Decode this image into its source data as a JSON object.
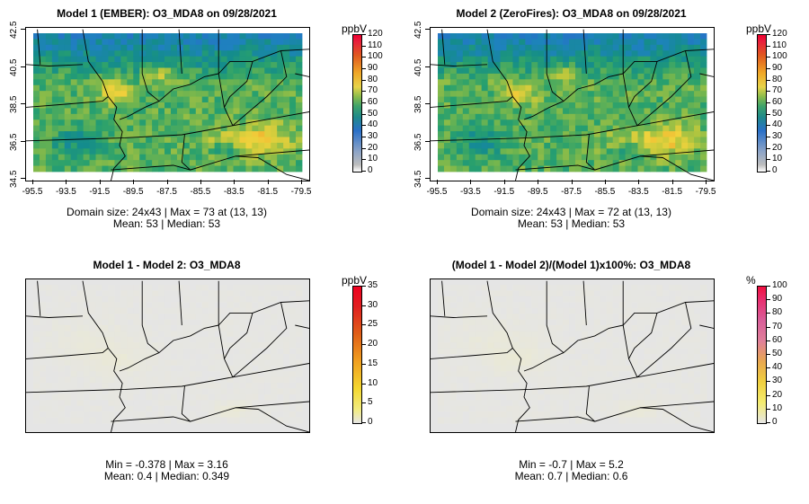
{
  "panels": [
    {
      "title": "Model 1 (EMBER): O3_MDA8 on 09/28/2021",
      "kind": "conc",
      "stats_line1": "Domain size: 24x43 | Max = 73 at (13, 13)",
      "stats_line2": "Mean: 53 |  Median: 53",
      "show_axes": true,
      "unit": "ppbV",
      "colorbar_labels": [
        "120",
        "110",
        "100",
        "90",
        "80",
        "70",
        "60",
        "50",
        "40",
        "30",
        "20",
        "10",
        "0"
      ],
      "colorbar_max": 120
    },
    {
      "title": "Model 2 (ZeroFires): O3_MDA8 on 09/28/2021",
      "kind": "conc",
      "stats_line1": "Domain size: 24x43 | Max = 72 at (13, 13)",
      "stats_line2": "Mean: 53 |  Median: 53",
      "show_axes": true,
      "unit": "ppbV",
      "colorbar_labels": [
        "120",
        "110",
        "100",
        "90",
        "80",
        "70",
        "60",
        "50",
        "40",
        "30",
        "20",
        "10",
        "0"
      ],
      "colorbar_max": 120
    },
    {
      "title": "Model 1 - Model 2: O3_MDA8",
      "kind": "diff",
      "stats_line1": "Min = -0.378 | Max = 3.16",
      "stats_line2": "Mean: 0.4 |  Median: 0.349",
      "show_axes": false,
      "unit": "ppbV",
      "colorbar_labels": [
        "35",
        "30",
        "25",
        "20",
        "15",
        "10",
        "5",
        "0"
      ],
      "colorbar_max": 35
    },
    {
      "title": "(Model 1 - Model 2)/(Model 1)x100%: O3_MDA8",
      "kind": "pct",
      "stats_line1": "Min = -0.7 | Max = 5.2",
      "stats_line2": "Mean: 0.7 |  Median: 0.6",
      "show_axes": false,
      "unit": "%",
      "colorbar_labels": [
        "100",
        "90",
        "80",
        "70",
        "60",
        "50",
        "40",
        "30",
        "20",
        "10",
        "0"
      ],
      "colorbar_max": 100
    }
  ],
  "x_tick_labels": [
    "-95.5",
    "-93.5",
    "-91.5",
    "-89.5",
    "-87.5",
    "-85.5",
    "-83.5",
    "-81.5",
    "-79.5"
  ],
  "y_tick_labels": [
    "42.5",
    "40.5",
    "38.5",
    "36.5",
    "34.5"
  ],
  "colors": {
    "background_diff": "#e5e5e5",
    "border_lines": "#000000"
  }
}
